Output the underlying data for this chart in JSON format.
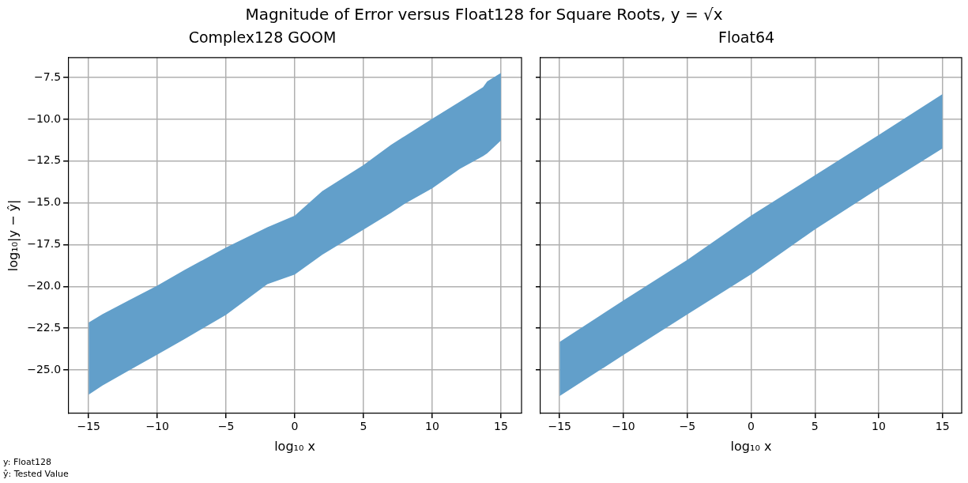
{
  "chart_data": [
    {
      "type": "area",
      "title": "Magnitude of Error versus Float128 for Square Roots, y = √x",
      "subtitle": "Complex128 GOOM",
      "xlabel": "log₁₀ x",
      "ylabel": "log₁₀|y − ŷ|",
      "annotations": [
        "y: Float128",
        "ŷ: Tested Value"
      ],
      "xlim": [
        -16.5,
        16.5
      ],
      "ylim": [
        -27.6,
        -6.3
      ],
      "xticks": [
        {
          "value": -15,
          "label": "−15"
        },
        {
          "value": -10,
          "label": "−10"
        },
        {
          "value": -5,
          "label": "−5"
        },
        0,
        5,
        10,
        15
      ],
      "yticks": [
        {
          "value": -25,
          "label": "−25.0"
        },
        {
          "value": -22.5,
          "label": "−22.5"
        },
        {
          "value": -20,
          "label": "−20.0"
        },
        {
          "value": -17.5,
          "label": "−17.5"
        },
        {
          "value": -15,
          "label": "−15.0"
        },
        {
          "value": -12.5,
          "label": "−12.5"
        },
        {
          "value": -10,
          "label": "−10.0"
        },
        {
          "value": -7.5,
          "label": "−7.5"
        }
      ],
      "grid": true,
      "series": [
        {
          "color": "#629fca",
          "x": [
            -15,
            -14,
            -12,
            -10,
            -8,
            -5,
            -2,
            0,
            2,
            5,
            7,
            8,
            10,
            12,
            13.7,
            14,
            15
          ],
          "values": [
            null,
            null,
            null,
            null,
            null,
            null,
            null,
            null,
            null,
            null,
            null,
            null,
            null,
            null,
            null,
            null,
            null
          ],
          "upper": [
            -22.16,
            -21.66,
            -20.8,
            -19.95,
            -19.0,
            -17.67,
            -16.46,
            -15.76,
            -14.29,
            -12.73,
            -11.52,
            -11.0,
            -9.97,
            -8.95,
            -8.07,
            -7.73,
            -7.22
          ],
          "lower": [
            -26.48,
            -25.93,
            -25,
            -24.07,
            -23.14,
            -21.7,
            -19.87,
            -19.29,
            -18.1,
            -16.6,
            -15.6,
            -15.05,
            -14.13,
            -12.97,
            -12.2,
            -12.03,
            -11.26
          ]
        }
      ]
    },
    {
      "type": "area",
      "title": "Float64",
      "xlabel": "log₁₀ x",
      "tick_labels": "x",
      "xlim": [
        -16.5,
        16.5
      ],
      "ylim": [
        -27.6,
        -6.3
      ],
      "xticks": [
        {
          "value": -15,
          "label": "−15"
        },
        {
          "value": -10,
          "label": "−10"
        },
        {
          "value": -5,
          "label": "−5"
        },
        0,
        5,
        10,
        15
      ],
      "yticks": [
        {
          "value": -25,
          "label": null
        },
        {
          "value": -22.5,
          "label": null
        },
        {
          "value": -20,
          "label": null
        },
        {
          "value": -17.5,
          "label": null
        },
        {
          "value": -15,
          "label": null
        },
        {
          "value": -12.5,
          "label": null
        },
        {
          "value": -10,
          "label": null
        },
        {
          "value": -7.5,
          "label": null
        }
      ],
      "grid": true,
      "series": [
        {
          "color": "#629fca",
          "x": [
            -15,
            -10,
            -5,
            0,
            5,
            10,
            15
          ],
          "values": [
            null,
            null,
            null,
            null,
            null,
            null,
            null
          ],
          "upper": [
            -23.32,
            -20.83,
            -18.41,
            -15.76,
            -13.35,
            -10.93,
            -8.49
          ],
          "lower": [
            -26.56,
            -24.1,
            -21.68,
            -19.27,
            -16.59,
            -14.13,
            -11.74
          ]
        }
      ]
    }
  ]
}
